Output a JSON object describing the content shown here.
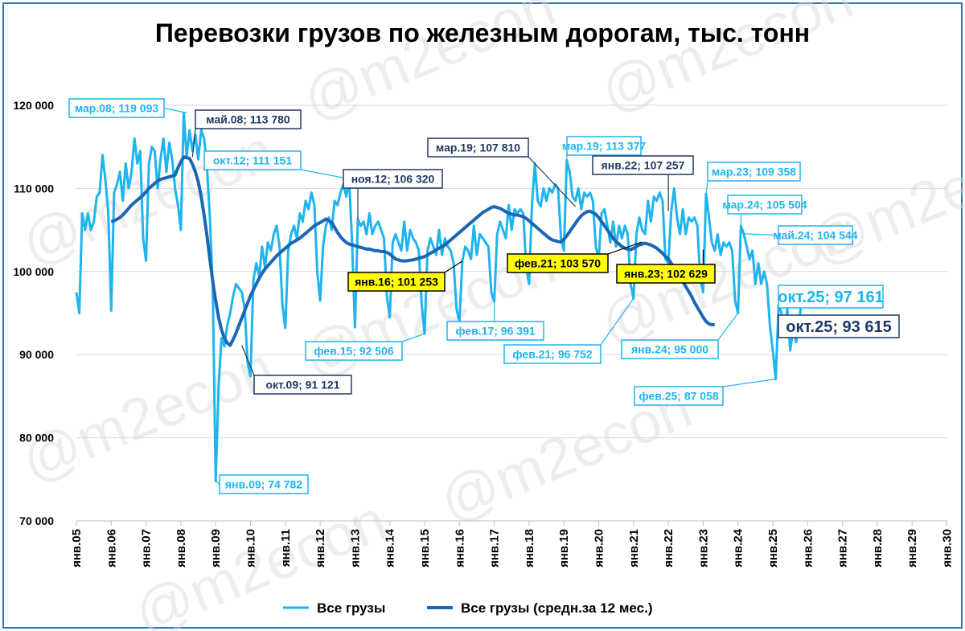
{
  "chart_data": {
    "type": "line",
    "title": "Перевозки грузов по железным дорогам, тыс. тонн",
    "watermark": "@m2econ",
    "ylim": [
      70000,
      120000
    ],
    "y_ticks": [
      "70 000",
      "80 000",
      "90 000",
      "100 000",
      "110 000",
      "120 000"
    ],
    "y_tick_values": [
      70000,
      80000,
      90000,
      100000,
      110000,
      120000
    ],
    "x_ticks": [
      "янв.05",
      "янв.06",
      "янв.07",
      "янв.08",
      "янв.09",
      "янв.10",
      "янв.11",
      "янв.12",
      "янв.13",
      "янв.14",
      "янв.15",
      "янв.16",
      "янв.17",
      "янв.18",
      "янв.19",
      "янв.20",
      "янв.21",
      "янв.22",
      "янв.23",
      "янв.24",
      "янв.25",
      "янв.26",
      "янв.27",
      "янв.28",
      "янв.29",
      "янв.30"
    ],
    "x_start": "2005-01",
    "x_end": "2030-01",
    "grid": true,
    "legend_position": "bottom",
    "colors": {
      "monthly": "#1fb4ee",
      "average": "#1b67b3",
      "dark_label": "#1f3864",
      "highlight": "#ffff00"
    },
    "series": [
      {
        "name": "Все грузы",
        "color": "#1fb4ee",
        "start": "2005-01",
        "values": [
          97500,
          95000,
          107000,
          105000,
          107000,
          105000,
          106000,
          109000,
          109500,
          114000,
          111000,
          107000,
          95300,
          109500,
          110500,
          112000,
          108500,
          113000,
          110000,
          112000,
          116000,
          113000,
          114500,
          104000,
          101300,
          113000,
          115000,
          114500,
          110000,
          113500,
          116000,
          112000,
          115500,
          113500,
          110000,
          108000,
          105000,
          119093,
          113780,
          117000,
          114500,
          116500,
          113500,
          117000,
          116000,
          112500,
          106500,
          98000,
          74782,
          86000,
          92000,
          91000,
          93500,
          95000,
          97000,
          98500,
          98000,
          97500,
          95500,
          89000,
          87400,
          99000,
          101000,
          99500,
          103000,
          100500,
          103500,
          102500,
          104500,
          105500,
          103000,
          96000,
          93200,
          102500,
          104500,
          105500,
          104000,
          107000,
          106000,
          108500,
          107500,
          109500,
          108000,
          100000,
          96500,
          103000,
          105500,
          106500,
          105000,
          108500,
          108000,
          109500,
          110500,
          109000,
          111151,
          103500,
          93300,
          106320,
          105500,
          106000,
          104500,
          107000,
          104500,
          105500,
          106000,
          105000,
          104000,
          97000,
          94500,
          103500,
          104500,
          103500,
          102500,
          106000,
          102500,
          105000,
          104000,
          103500,
          102500,
          96000,
          92506,
          102500,
          104000,
          103000,
          102000,
          105000,
          102000,
          104000,
          103000,
          102500,
          101000,
          95500,
          94000,
          101253,
          103000,
          102500,
          101500,
          105500,
          102000,
          104500,
          104000,
          103500,
          103000,
          97500,
          96391,
          104500,
          106000,
          105000,
          104000,
          108000,
          105000,
          107500,
          107000,
          107500,
          107000,
          100500,
          98500,
          108000,
          113000,
          108500,
          107810,
          110000,
          108500,
          110000,
          109500,
          110500,
          110000,
          104000,
          102500,
          113377,
          112000,
          109000,
          108500,
          110000,
          107500,
          109500,
          109000,
          109500,
          108500,
          103000,
          101500,
          107000,
          107500,
          105500,
          103500,
          106000,
          103000,
          105500,
          104000,
          105500,
          104500,
          98500,
          96752,
          104500,
          106500,
          105000,
          104500,
          108500,
          106000,
          109000,
          108500,
          109500,
          108500,
          101500,
          101000,
          107257,
          110000,
          106500,
          104500,
          107500,
          104500,
          106500,
          106000,
          106500,
          105500,
          99000,
          97500,
          109358,
          106500,
          103500,
          102500,
          104500,
          102000,
          103500,
          103000,
          103500,
          102500,
          96500,
          95000,
          105504,
          104544,
          103000,
          101500,
          102500,
          98500,
          101000,
          98500,
          100000,
          98500,
          93500,
          90500,
          87058,
          96000,
          95000,
          93000,
          95500,
          90500,
          93000,
          91500,
          93500,
          97161
        ]
      },
      {
        "name": "Все грузы (средн.за 12 мес.)",
        "color": "#1b67b3",
        "start": "2006-01",
        "values": [
          106000,
          106100,
          106300,
          106500,
          106800,
          107200,
          107600,
          108000,
          108300,
          108600,
          108900,
          109200,
          109600,
          110000,
          110300,
          110600,
          110900,
          111100,
          111200,
          111300,
          111400,
          111500,
          111600,
          112500,
          113200,
          113780,
          113700,
          113600,
          112900,
          112000,
          110800,
          109000,
          106800,
          104300,
          101500,
          98800,
          96500,
          94500,
          93000,
          92000,
          91400,
          91121,
          91800,
          92600,
          93500,
          94400,
          95300,
          96200,
          97100,
          97800,
          98500,
          99200,
          99800,
          100300,
          100700,
          101100,
          101500,
          101900,
          102200,
          102500,
          102800,
          103100,
          103400,
          103600,
          103800,
          104000,
          104300,
          104600,
          104900,
          105200,
          105500,
          105700,
          105900,
          106100,
          106320,
          106150,
          105900,
          105300,
          104700,
          104200,
          103800,
          103500,
          103300,
          103200,
          103100,
          103000,
          102900,
          102800,
          102700,
          102700,
          102600,
          102500,
          102500,
          102400,
          102400,
          102300,
          102100,
          101800,
          101500,
          101400,
          101300,
          101253,
          101300,
          101350,
          101400,
          101500,
          101600,
          101700,
          101800,
          102000,
          102200,
          102400,
          102600,
          102800,
          103000,
          103200,
          103500,
          103800,
          104100,
          104400,
          104700,
          105000,
          105300,
          105600,
          105900,
          106200,
          106500,
          106800,
          107100,
          107300,
          107500,
          107700,
          107810,
          107700,
          107600,
          107400,
          107200,
          107000,
          106900,
          106800,
          106800,
          106700,
          106600,
          106400,
          106100,
          105800,
          105500,
          105200,
          104900,
          104600,
          104300,
          104000,
          103800,
          103700,
          103600,
          103570,
          103900,
          104300,
          104800,
          105300,
          105800,
          106300,
          106700,
          107000,
          107200,
          107257,
          107100,
          106900,
          106500,
          106000,
          105500,
          105000,
          104500,
          104000,
          103600,
          103300,
          103000,
          102800,
          102700,
          102629,
          102800,
          103000,
          103200,
          103300,
          103400,
          103300,
          103200,
          103000,
          102800,
          102500,
          102200,
          101800,
          101500,
          101000,
          100500,
          100000,
          99400,
          98800,
          98200,
          97600,
          97000,
          96300,
          95700,
          95100,
          94500,
          94000,
          93700,
          93600,
          93615
        ]
      }
    ],
    "annotations": [
      {
        "text": "мар.08; 119 093",
        "style": "light",
        "date": "2008-03",
        "value": 119093
      },
      {
        "text": "май.08;  113 780",
        "style": "dark",
        "date": "2008-05",
        "value": 113780
      },
      {
        "text": "окт.12; 111 151",
        "style": "light",
        "date": "2012-11",
        "value": 111151
      },
      {
        "text": "ноя.12;  106 320",
        "style": "dark",
        "date": "2013-02",
        "value": 106320
      },
      {
        "text": "мар.19;  107 810",
        "style": "dark",
        "date": "2019-05",
        "value": 107810
      },
      {
        "text": "мар.19; 113 377",
        "style": "light",
        "date": "2019-02",
        "value": 113377
      },
      {
        "text": "янв.22;  107 257",
        "style": "dark",
        "date": "2022-01",
        "value": 107257
      },
      {
        "text": "мар.23; 109 358",
        "style": "light",
        "date": "2023-02",
        "value": 109358
      },
      {
        "text": "мар.24; 105 504",
        "style": "light",
        "date": "2024-02",
        "value": 105504
      },
      {
        "text": "май.24; 104 544",
        "style": "light",
        "date": "2024-03",
        "value": 104544
      },
      {
        "text": "янв.16;  101 253",
        "style": "yellow",
        "date": "2016-02",
        "value": 101253
      },
      {
        "text": "фев.21;  103 570",
        "style": "yellow",
        "date": "2021-04",
        "value": 103570
      },
      {
        "text": "янв.23;  102 629",
        "style": "yellow",
        "date": "2023-01",
        "value": 102629
      },
      {
        "text": "окт.09;  91 121",
        "style": "dark",
        "date": "2009-10",
        "value": 91121
      },
      {
        "text": "фев.15; 92 506",
        "style": "light",
        "date": "2015-01",
        "value": 92506
      },
      {
        "text": "фев.17; 96 391",
        "style": "light",
        "date": "2017-01",
        "value": 96391
      },
      {
        "text": "фев.21; 96 752",
        "style": "light",
        "date": "2021-01",
        "value": 96752
      },
      {
        "text": "янв.24; 95 000",
        "style": "light",
        "date": "2024-01",
        "value": 95000
      },
      {
        "text": "фев.25; 87 058",
        "style": "light",
        "date": "2025-02",
        "value": 87058
      },
      {
        "text": "янв.09; 74 782",
        "style": "light",
        "date": "2009-01",
        "value": 74782
      },
      {
        "text": "окт.25; 97 161",
        "style": "light-big",
        "date": "2025-11",
        "value": 97161
      },
      {
        "text": "окт.25;  93 615",
        "style": "dark-big",
        "date": "2025-11",
        "value": 93615
      }
    ]
  }
}
